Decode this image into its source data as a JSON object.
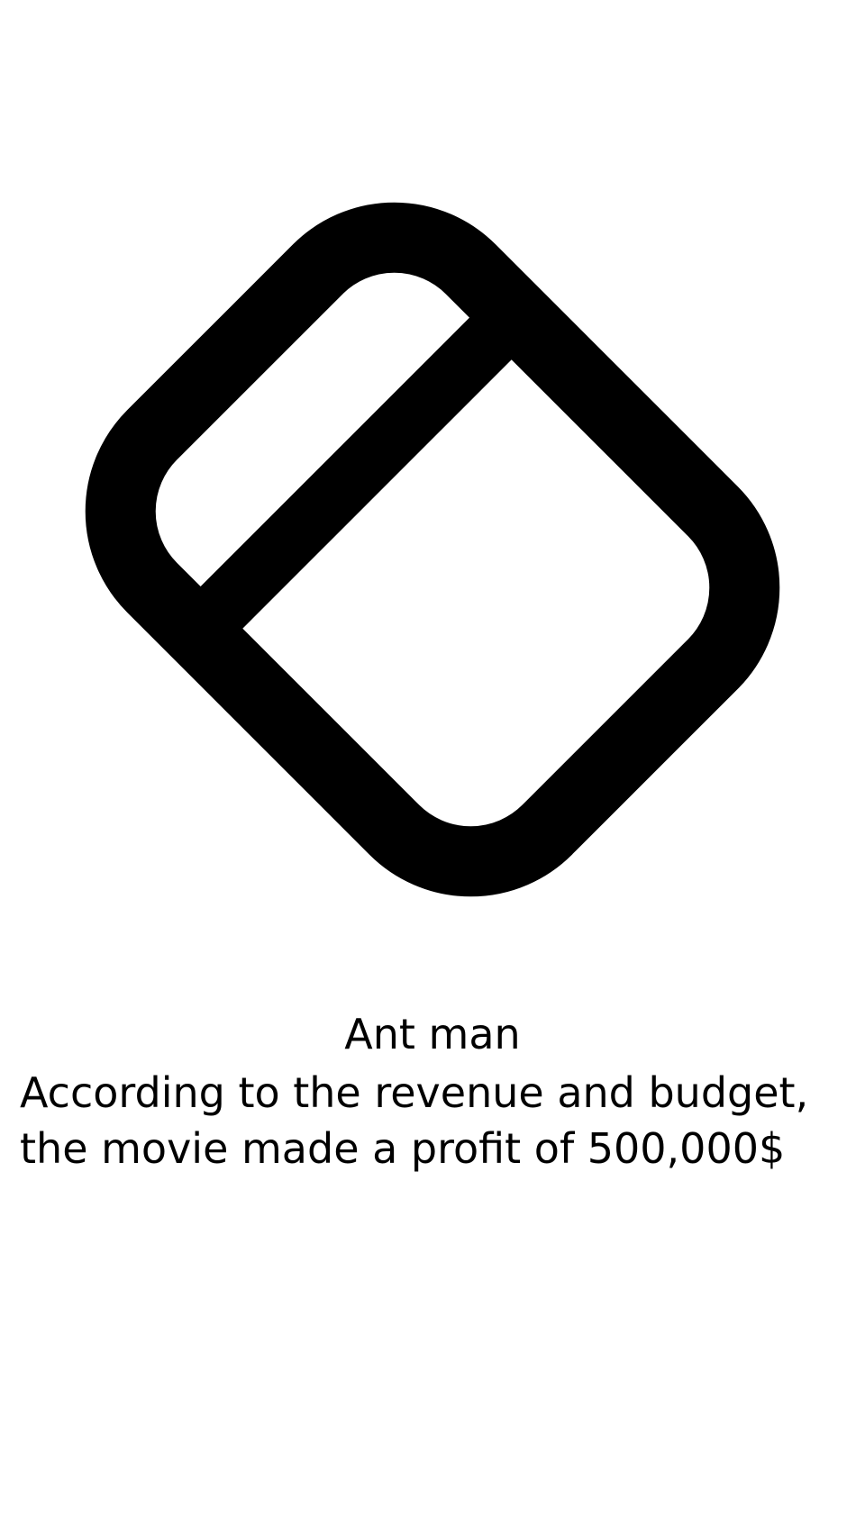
{
  "screen": {
    "icon": "eraser-icon",
    "title": "Ant man",
    "message": "According to the revenue and budget, the movie made a profit of 500,000$",
    "colors": {
      "background": "#ffffff",
      "foreground": "#000000"
    }
  }
}
